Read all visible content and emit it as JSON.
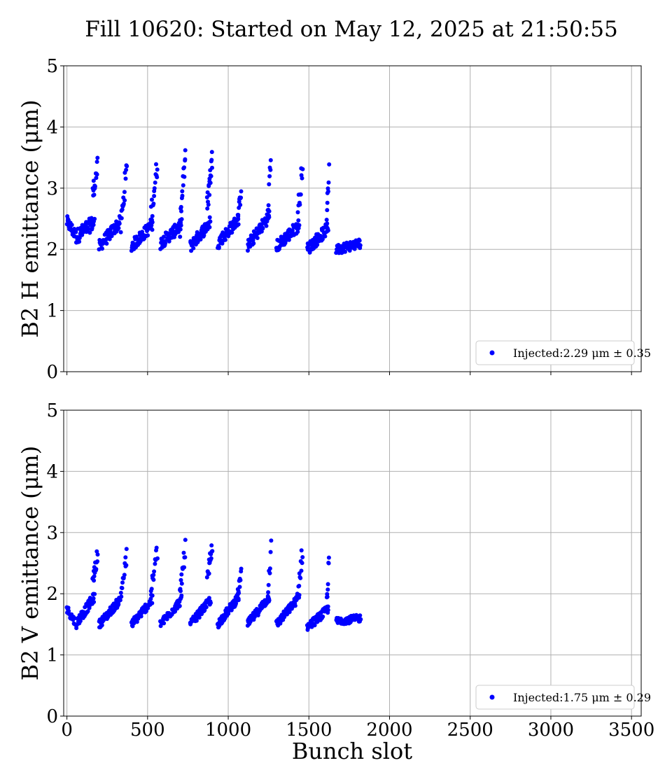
{
  "figure": {
    "title": "Fill 10620: Started on May 12, 2025 at 21:50:55",
    "xlabel": "Bunch slot"
  },
  "colors": {
    "points": "#0000ff",
    "grid": "#b0b0b0",
    "axis": "#000000"
  },
  "chart_data": [
    {
      "type": "scatter",
      "name": "horizontal",
      "ylabel": "B2 H emittance (μm)",
      "xlim": [
        -20,
        3560
      ],
      "ylim": [
        0,
        5
      ],
      "xticks": [
        0,
        500,
        1000,
        1500,
        2000,
        2500,
        3000,
        3500
      ],
      "yticks": [
        0,
        1,
        2,
        3,
        4,
        5
      ],
      "show_xtick_labels": false,
      "grid": true,
      "legend": {
        "placement": "lower-right",
        "label": "Injected:2.29 μm ± 0.35"
      },
      "series": [
        {
          "name": "Injected",
          "trains": [
            {
              "start": 0,
              "end": 48,
              "base_start": 2.45,
              "base_end": 2.25,
              "spread": 0.1
            },
            {
              "start": 55,
              "end": 170,
              "base_start": 2.2,
              "base_end": 2.45,
              "spread": 0.12
            },
            {
              "start": 160,
              "end": 190,
              "base_start": 2.9,
              "base_end": 3.35,
              "spread": 0.15,
              "count": 14
            },
            {
              "start": 200,
              "end": 330,
              "base_start": 2.05,
              "base_end": 2.45,
              "spread": 0.1
            },
            {
              "start": 335,
              "end": 370,
              "base_start": 2.4,
              "base_end": 3.3,
              "spread": 0.2,
              "count": 16
            },
            {
              "start": 400,
              "end": 530,
              "base_start": 2.05,
              "base_end": 2.4,
              "spread": 0.1
            },
            {
              "start": 520,
              "end": 560,
              "base_start": 2.5,
              "base_end": 3.4,
              "spread": 0.2,
              "count": 16
            },
            {
              "start": 580,
              "end": 710,
              "base_start": 2.1,
              "base_end": 2.4,
              "spread": 0.1
            },
            {
              "start": 700,
              "end": 735,
              "base_start": 2.4,
              "base_end": 3.55,
              "spread": 0.2,
              "count": 16
            },
            {
              "start": 765,
              "end": 890,
              "base_start": 2.05,
              "base_end": 2.45,
              "spread": 0.1
            },
            {
              "start": 870,
              "end": 900,
              "base_start": 2.7,
              "base_end": 3.5,
              "spread": 0.18,
              "count": 18
            },
            {
              "start": 935,
              "end": 1065,
              "base_start": 2.1,
              "base_end": 2.5,
              "spread": 0.1
            },
            {
              "start": 1060,
              "end": 1080,
              "base_start": 2.5,
              "base_end": 3.0,
              "spread": 0.12,
              "count": 10
            },
            {
              "start": 1120,
              "end": 1255,
              "base_start": 2.05,
              "base_end": 2.55,
              "spread": 0.1
            },
            {
              "start": 1245,
              "end": 1265,
              "base_start": 2.6,
              "base_end": 3.45,
              "spread": 0.15,
              "count": 8
            },
            {
              "start": 1300,
              "end": 1440,
              "base_start": 2.05,
              "base_end": 2.4,
              "spread": 0.1
            },
            {
              "start": 1430,
              "end": 1460,
              "base_start": 2.5,
              "base_end": 3.4,
              "spread": 0.18,
              "count": 12
            },
            {
              "start": 1490,
              "end": 1620,
              "base_start": 2.0,
              "base_end": 2.35,
              "spread": 0.1
            },
            {
              "start": 1610,
              "end": 1625,
              "base_start": 2.6,
              "base_end": 3.25,
              "spread": 0.15,
              "count": 8
            },
            {
              "start": 1670,
              "end": 1820,
              "base_start": 2.0,
              "base_end": 2.1,
              "spread": 0.08
            }
          ]
        }
      ]
    },
    {
      "type": "scatter",
      "name": "vertical",
      "ylabel": "B2 V emittance (μm)",
      "xlim": [
        -20,
        3560
      ],
      "ylim": [
        0,
        5
      ],
      "xticks": [
        0,
        500,
        1000,
        1500,
        2000,
        2500,
        3000,
        3500
      ],
      "yticks": [
        0,
        1,
        2,
        3,
        4,
        5
      ],
      "show_xtick_labels": true,
      "grid": true,
      "legend": {
        "placement": "lower-right",
        "label": "Injected:1.75 μm ± 0.29"
      },
      "series": [
        {
          "name": "Injected",
          "trains": [
            {
              "start": 0,
              "end": 48,
              "base_start": 1.75,
              "base_end": 1.55,
              "spread": 0.07
            },
            {
              "start": 55,
              "end": 170,
              "base_start": 1.5,
              "base_end": 1.95,
              "spread": 0.08
            },
            {
              "start": 160,
              "end": 190,
              "base_start": 2.2,
              "base_end": 2.65,
              "spread": 0.12,
              "count": 14
            },
            {
              "start": 200,
              "end": 330,
              "base_start": 1.5,
              "base_end": 1.9,
              "spread": 0.07
            },
            {
              "start": 335,
              "end": 370,
              "base_start": 2.0,
              "base_end": 2.6,
              "spread": 0.15,
              "count": 14
            },
            {
              "start": 400,
              "end": 530,
              "base_start": 1.5,
              "base_end": 1.9,
              "spread": 0.07
            },
            {
              "start": 520,
              "end": 560,
              "base_start": 2.0,
              "base_end": 2.7,
              "spread": 0.15,
              "count": 14
            },
            {
              "start": 580,
              "end": 710,
              "base_start": 1.5,
              "base_end": 1.9,
              "spread": 0.07
            },
            {
              "start": 700,
              "end": 735,
              "base_start": 2.0,
              "base_end": 2.75,
              "spread": 0.15,
              "count": 14
            },
            {
              "start": 765,
              "end": 890,
              "base_start": 1.5,
              "base_end": 1.9,
              "spread": 0.07
            },
            {
              "start": 870,
              "end": 900,
              "base_start": 2.2,
              "base_end": 2.75,
              "spread": 0.15,
              "count": 16
            },
            {
              "start": 935,
              "end": 1065,
              "base_start": 1.5,
              "base_end": 1.95,
              "spread": 0.07
            },
            {
              "start": 1060,
              "end": 1080,
              "base_start": 2.0,
              "base_end": 2.35,
              "spread": 0.1,
              "count": 10
            },
            {
              "start": 1120,
              "end": 1255,
              "base_start": 1.5,
              "base_end": 1.95,
              "spread": 0.07
            },
            {
              "start": 1245,
              "end": 1265,
              "base_start": 2.0,
              "base_end": 2.75,
              "spread": 0.15,
              "count": 8
            },
            {
              "start": 1300,
              "end": 1440,
              "base_start": 1.5,
              "base_end": 1.95,
              "spread": 0.07
            },
            {
              "start": 1430,
              "end": 1460,
              "base_start": 2.0,
              "base_end": 2.7,
              "spread": 0.15,
              "count": 12
            },
            {
              "start": 1490,
              "end": 1620,
              "base_start": 1.45,
              "base_end": 1.75,
              "spread": 0.07
            },
            {
              "start": 1610,
              "end": 1625,
              "base_start": 1.9,
              "base_end": 2.55,
              "spread": 0.15,
              "count": 8
            },
            {
              "start": 1670,
              "end": 1820,
              "base_start": 1.55,
              "base_end": 1.6,
              "spread": 0.06
            }
          ]
        }
      ]
    }
  ]
}
